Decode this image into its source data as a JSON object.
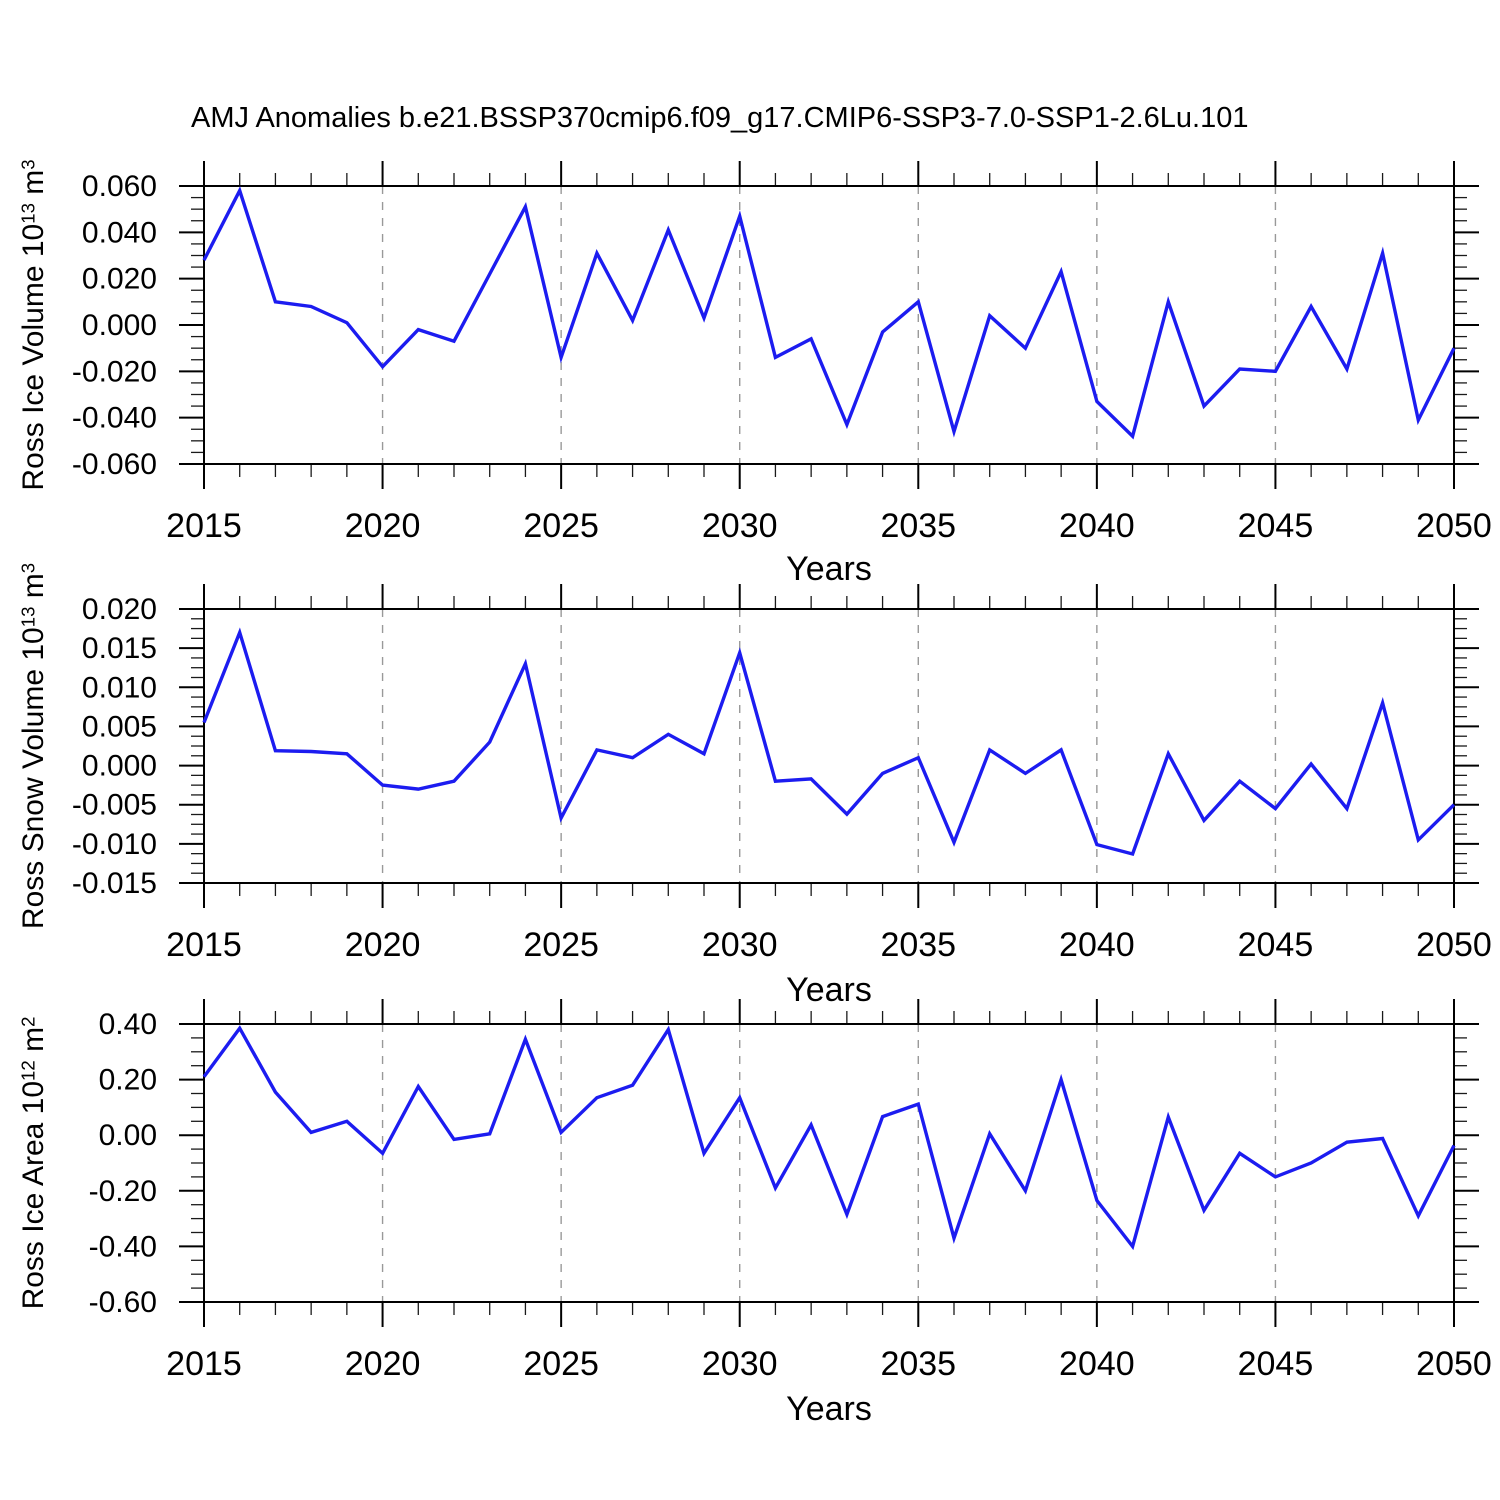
{
  "title": "AMJ Anomalies b.e21.BSSP370cmip6.f09_g17.CMIP6-SSP3-7.0-SSP1-2.6Lu.101",
  "styles": {
    "line_color": "#1c1cf0",
    "grid_color": "#999999",
    "axis_color": "#000000",
    "background": "#ffffff"
  },
  "x_axis": {
    "label": "Years",
    "range": [
      2015,
      2050
    ],
    "major_tick_step": 5,
    "minor_tick_step": 1,
    "tick_labels": [
      "2015",
      "2020",
      "2025",
      "2030",
      "2035",
      "2040",
      "2045",
      "2050"
    ],
    "gridline_years": [
      2020,
      2025,
      2030,
      2035,
      2040,
      2045
    ]
  },
  "chart_data": [
    {
      "type": "line",
      "name": "ross-ice-volume",
      "ylabel": {
        "base": "Ross Ice Volume 10",
        "exp": "13",
        "unit": " m",
        "unit_exp": "3",
        "plain": "Ross Ice Volume 10^13 m^3"
      },
      "xlabel": "Years",
      "ylim": [
        -0.06,
        0.06
      ],
      "ytick_values": [
        0.06,
        0.04,
        0.02,
        0.0,
        -0.02,
        -0.04,
        -0.06
      ],
      "ytick_labels": [
        "0.060",
        "0.040",
        "0.020",
        "0.000",
        "-0.020",
        "-0.040",
        "-0.060"
      ],
      "grid": "vertical-dashed",
      "legend": "none",
      "years": [
        2015,
        2016,
        2017,
        2018,
        2019,
        2020,
        2021,
        2022,
        2023,
        2024,
        2025,
        2026,
        2027,
        2028,
        2029,
        2030,
        2031,
        2032,
        2033,
        2034,
        2035,
        2036,
        2037,
        2038,
        2039,
        2040,
        2041,
        2042,
        2043,
        2044,
        2045,
        2046,
        2047,
        2048,
        2049,
        2050
      ],
      "values": [
        0.028,
        0.058,
        0.01,
        0.008,
        0.001,
        -0.018,
        -0.002,
        -0.007,
        0.022,
        0.051,
        -0.014,
        0.031,
        0.002,
        0.041,
        0.003,
        0.047,
        -0.014,
        -0.006,
        -0.043,
        -0.003,
        0.01,
        -0.046,
        0.004,
        -0.01,
        0.023,
        -0.033,
        -0.048,
        0.01,
        -0.035,
        -0.019,
        -0.02,
        0.008,
        -0.019,
        0.031,
        -0.041,
        -0.01
      ]
    },
    {
      "type": "line",
      "name": "ross-snow-volume",
      "ylabel": {
        "base": "Ross Snow Volume 10",
        "exp": "13",
        "unit": " m",
        "unit_exp": "3",
        "plain": "Ross Snow Volume 10^13 m^3"
      },
      "xlabel": "Years",
      "ylim": [
        -0.015,
        0.02
      ],
      "ytick_values": [
        0.02,
        0.015,
        0.01,
        0.005,
        0.0,
        -0.005,
        -0.01,
        -0.015
      ],
      "ytick_labels": [
        "0.020",
        "0.015",
        "0.010",
        "0.005",
        "0.000",
        "-0.005",
        "-0.010",
        "-0.015"
      ],
      "grid": "vertical-dashed",
      "legend": "none",
      "years": [
        2015,
        2016,
        2017,
        2018,
        2019,
        2020,
        2021,
        2022,
        2023,
        2024,
        2025,
        2026,
        2027,
        2028,
        2029,
        2030,
        2031,
        2032,
        2033,
        2034,
        2035,
        2036,
        2037,
        2038,
        2039,
        2040,
        2041,
        2042,
        2043,
        2044,
        2045,
        2046,
        2047,
        2048,
        2049,
        2050
      ],
      "values": [
        0.0055,
        0.017,
        0.0019,
        0.0018,
        0.0015,
        -0.0025,
        -0.003,
        -0.002,
        0.003,
        0.013,
        -0.0067,
        0.002,
        0.001,
        0.004,
        0.0015,
        0.0144,
        -0.002,
        -0.0017,
        -0.0062,
        -0.001,
        0.001,
        -0.0098,
        0.002,
        -0.001,
        0.002,
        -0.0101,
        -0.0113,
        0.0015,
        -0.007,
        -0.002,
        -0.0055,
        0.0002,
        -0.0055,
        0.008,
        -0.0095,
        -0.005
      ]
    },
    {
      "type": "line",
      "name": "ross-ice-area",
      "ylabel": {
        "base": "Ross Ice Area 10",
        "exp": "12",
        "unit": " m",
        "unit_exp": "2",
        "plain": "Ross Ice Area 10^12 m^2"
      },
      "xlabel": "Years",
      "ylim": [
        -0.6,
        0.4
      ],
      "ytick_values": [
        0.4,
        0.2,
        0.0,
        -0.2,
        -0.4,
        -0.6
      ],
      "ytick_labels": [
        "0.40",
        "0.20",
        "0.00",
        "-0.20",
        "-0.40",
        "-0.60"
      ],
      "grid": "vertical-dashed",
      "legend": "none",
      "years": [
        2015,
        2016,
        2017,
        2018,
        2019,
        2020,
        2021,
        2022,
        2023,
        2024,
        2025,
        2026,
        2027,
        2028,
        2029,
        2030,
        2031,
        2032,
        2033,
        2034,
        2035,
        2036,
        2037,
        2038,
        2039,
        2040,
        2041,
        2042,
        2043,
        2044,
        2045,
        2046,
        2047,
        2048,
        2049,
        2050
      ],
      "values": [
        0.21,
        0.385,
        0.155,
        0.01,
        0.05,
        -0.065,
        0.175,
        -0.015,
        0.005,
        0.345,
        0.01,
        0.135,
        0.18,
        0.38,
        -0.065,
        0.135,
        -0.19,
        0.037,
        -0.285,
        0.067,
        0.112,
        -0.37,
        0.005,
        -0.2,
        0.2,
        -0.235,
        -0.4,
        0.065,
        -0.27,
        -0.065,
        -0.15,
        -0.1,
        -0.025,
        -0.012,
        -0.29,
        -0.037
      ]
    }
  ]
}
